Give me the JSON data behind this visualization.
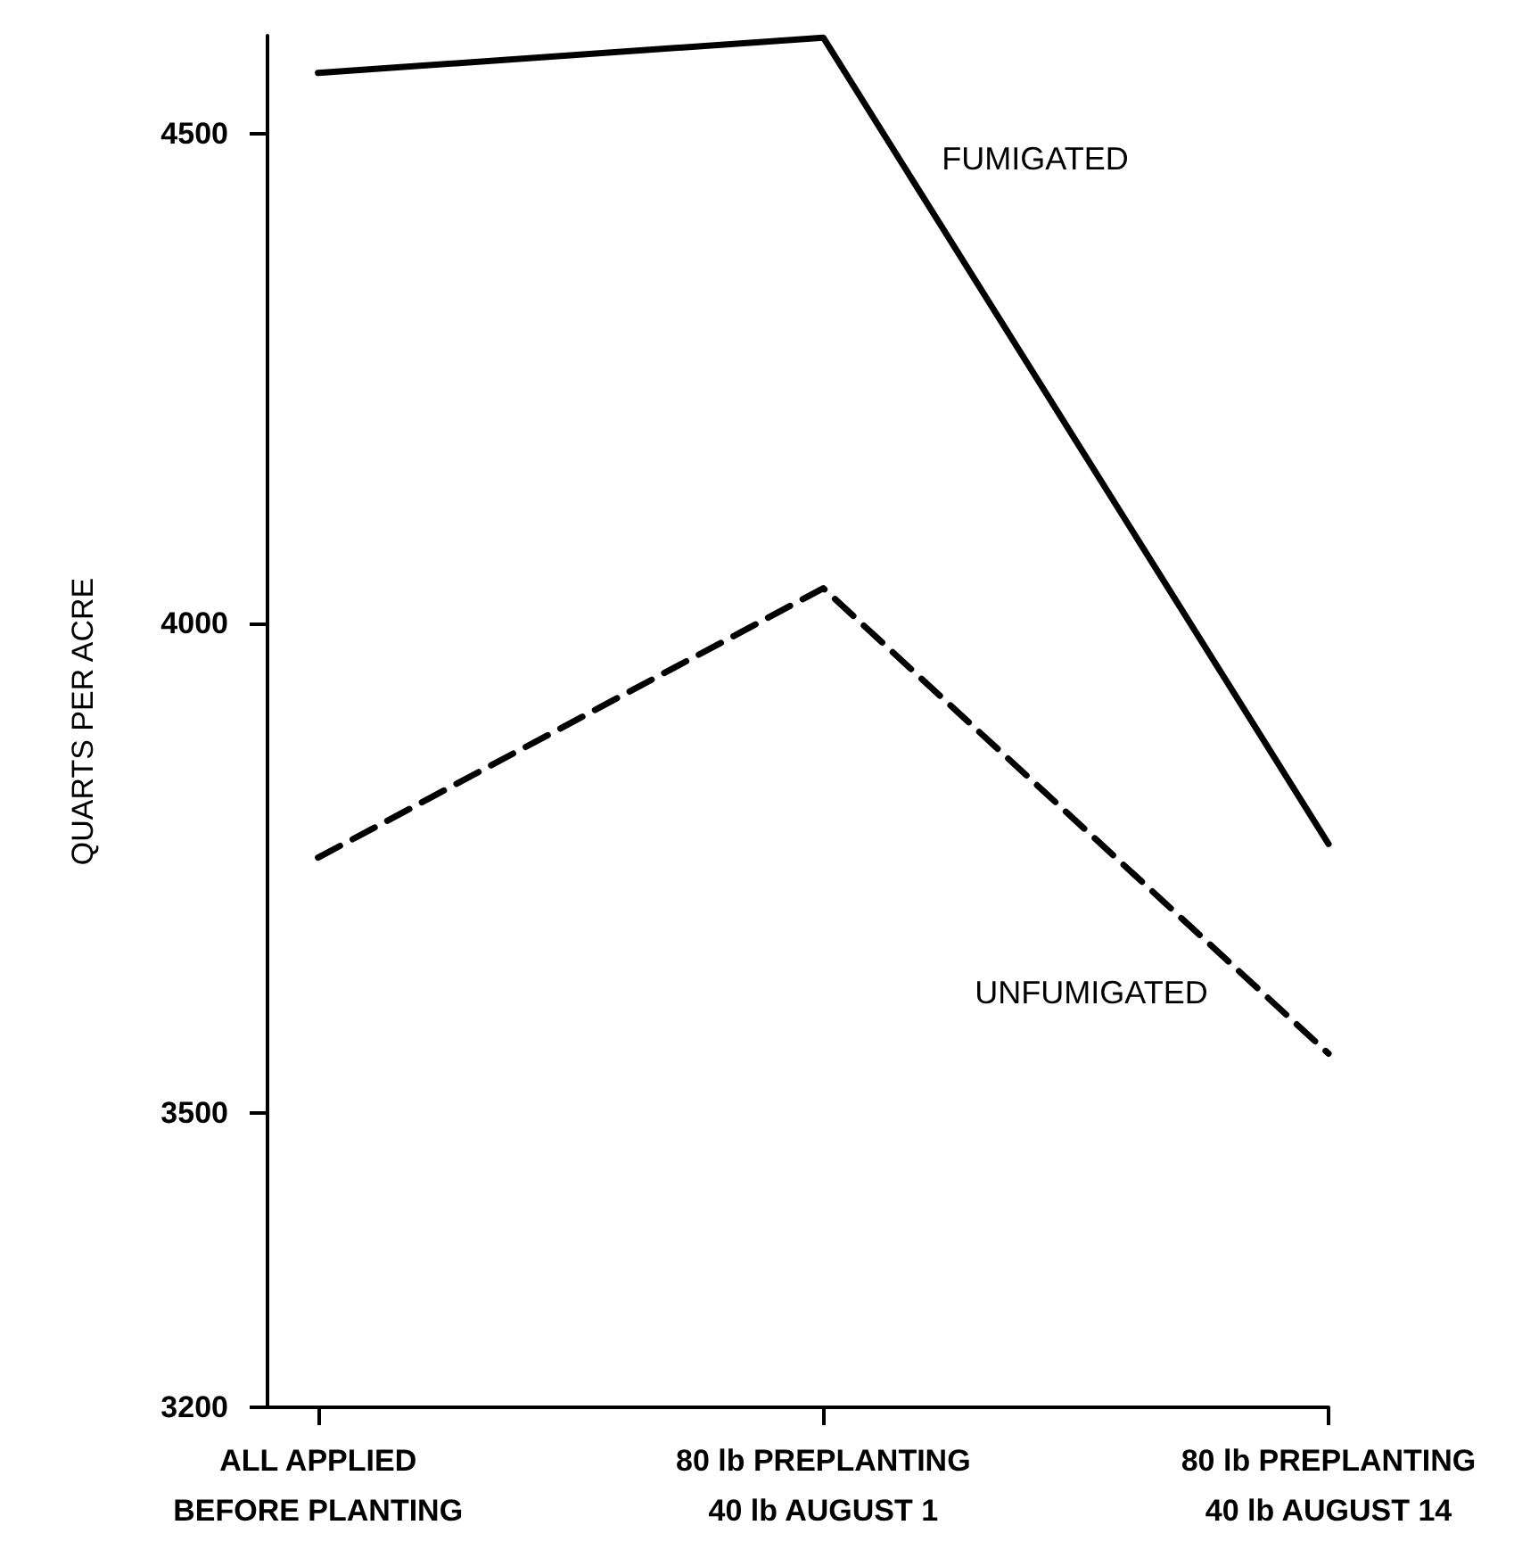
{
  "chart_data": {
    "type": "line",
    "ylabel": "QUARTS PER ACRE",
    "categories": [
      "ALL APPLIED\nBEFORE PLANTING",
      "80 lb PREPLANTING\n40 lb AUGUST 1",
      "80 lb PREPLANTING\n40 lb AUGUST 14"
    ],
    "series": [
      {
        "name": "FUMIGATED",
        "color": "#000000",
        "line_style": "solid",
        "values": [
          4562,
          4598,
          3775
        ]
      },
      {
        "name": "UNFUMIGATED",
        "color": "#000000",
        "line_style": "dashed",
        "values": [
          3761,
          4036,
          3561
        ]
      }
    ],
    "ylim": [
      3200,
      4600
    ],
    "yticks": [
      3200,
      3500,
      4000,
      4500
    ],
    "grid": false,
    "legend": false,
    "marker": "none"
  }
}
